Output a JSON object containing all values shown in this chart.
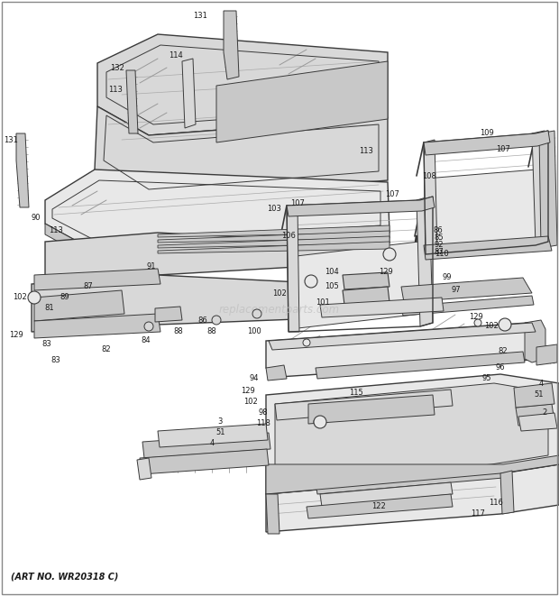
{
  "art_no_text": "(ART NO. WR20318 C)",
  "background_color": "#ffffff",
  "line_color": "#3a3a3a",
  "text_color": "#1a1a1a",
  "watermark_text": "replacementparts.com",
  "watermark_color": "#bbbbbb",
  "figsize": [
    6.2,
    6.61
  ],
  "dpi": 100,
  "fill_light": "#e8e8e8",
  "fill_mid": "#d8d8d8",
  "fill_dark": "#c8c8c8",
  "fill_shade": "#b8b8b8"
}
